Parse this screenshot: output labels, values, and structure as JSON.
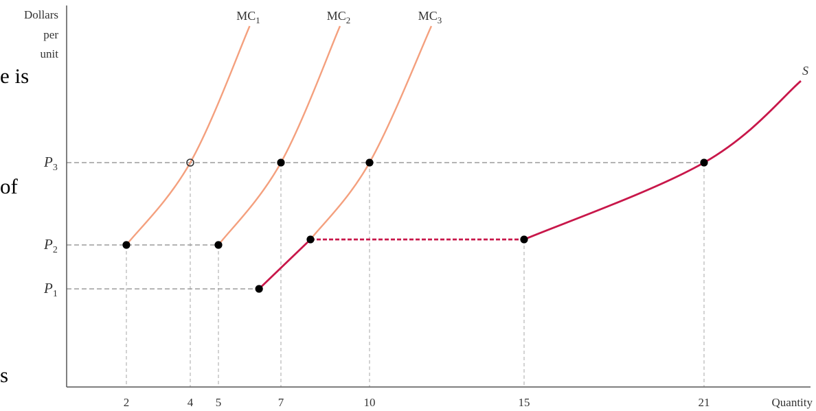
{
  "page_fragments": [
    "e is",
    "of",
    "s"
  ],
  "chart_data": {
    "type": "line",
    "title": "",
    "xlabel": "Quantity",
    "ylabel": "Dollars per unit",
    "ylabel_lines": [
      "Dollars",
      "per",
      "unit"
    ],
    "x_ticks": [
      2,
      4,
      5,
      7,
      10,
      15,
      21
    ],
    "y_ticks": [
      {
        "name": "P",
        "sub": "1",
        "value": 1
      },
      {
        "name": "P",
        "sub": "2",
        "value": 2
      },
      {
        "name": "P",
        "sub": "3",
        "value": 3
      }
    ],
    "xlim": [
      0,
      24
    ],
    "ylim": [
      0,
      6.2
    ],
    "series": [
      {
        "name": "MC",
        "sub": "1",
        "color": "#f4a07e",
        "points": [
          [
            2,
            2
          ],
          [
            4,
            3
          ],
          [
            6,
            5.95
          ]
        ]
      },
      {
        "name": "MC",
        "sub": "2",
        "color": "#f4a07e",
        "points": [
          [
            5,
            2
          ],
          [
            7,
            3
          ],
          [
            9,
            5.95
          ]
        ]
      },
      {
        "name": "MC",
        "sub": "3",
        "color": "#f4a07e",
        "points": [
          [
            8,
            2.05
          ],
          [
            10,
            3
          ],
          [
            12,
            5.95
          ]
        ]
      },
      {
        "name": "S",
        "sub": "",
        "color": "#c8174a",
        "segments": [
          {
            "style": "solid",
            "points": [
              [
                6.3,
                1
              ],
              [
                8,
                2.05
              ]
            ]
          },
          {
            "style": "dashed",
            "points": [
              [
                8,
                2.05
              ],
              [
                15,
                2.05
              ]
            ]
          },
          {
            "style": "solid",
            "points": [
              [
                15,
                2.05
              ],
              [
                21,
                3
              ],
              [
                23.2,
                4.6
              ]
            ]
          }
        ]
      }
    ],
    "markers": [
      [
        2,
        2
      ],
      [
        5,
        2
      ],
      [
        6.3,
        1
      ],
      [
        8,
        2.05
      ],
      [
        15,
        2.05
      ],
      [
        7,
        3
      ],
      [
        10,
        3
      ],
      [
        21,
        3
      ]
    ],
    "open_markers": [
      [
        4,
        3
      ]
    ],
    "guides": {
      "vertical": [
        [
          2,
          2
        ],
        [
          4,
          3
        ],
        [
          5,
          2
        ],
        [
          7,
          3
        ],
        [
          10,
          3
        ],
        [
          15,
          2.05
        ],
        [
          21,
          3
        ]
      ],
      "horizontal": [
        [
          1,
          6.3
        ],
        [
          2,
          5
        ],
        [
          3,
          21
        ]
      ]
    },
    "colors": {
      "mc": "#f4a07e",
      "supply": "#c8174a",
      "guide": "#888888",
      "guide_light": "#bbbbbb",
      "axis": "#555555"
    }
  }
}
